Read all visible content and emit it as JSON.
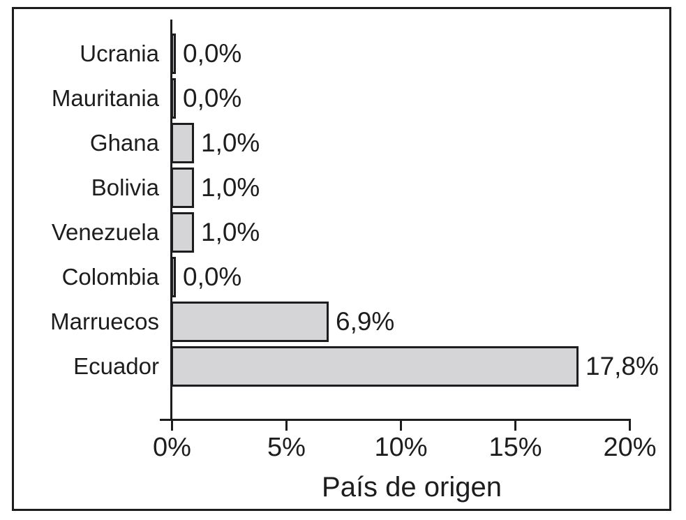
{
  "chart_data": {
    "type": "bar",
    "orientation": "horizontal",
    "title": "",
    "xlabel": "País de origen",
    "ylabel": "",
    "categories": [
      "Ucrania",
      "Mauritania",
      "Ghana",
      "Bolivia",
      "Venezuela",
      "Colombia",
      "Marruecos",
      "Ecuador"
    ],
    "values": [
      0.0,
      0.0,
      1.0,
      1.0,
      1.0,
      0.0,
      6.9,
      17.8
    ],
    "value_labels": [
      "0,0%",
      "0,0%",
      "1,0%",
      "1,0%",
      "1,0%",
      "0,0%",
      "6,9%",
      "17,8%"
    ],
    "xlim": [
      0,
      20
    ],
    "xticks": [
      0,
      5,
      10,
      15,
      20
    ],
    "xtick_labels": [
      "0%",
      "5%",
      "10%",
      "15%",
      "20%"
    ],
    "grid": false,
    "legend": false,
    "colors": {
      "bar_fill": "#d5d5d7",
      "bar_border": "#1d1d1f",
      "axis": "#1d1d1f",
      "text": "#1d1d1f",
      "frame_border": "#1d1d1f",
      "background": "#ffffff"
    }
  }
}
